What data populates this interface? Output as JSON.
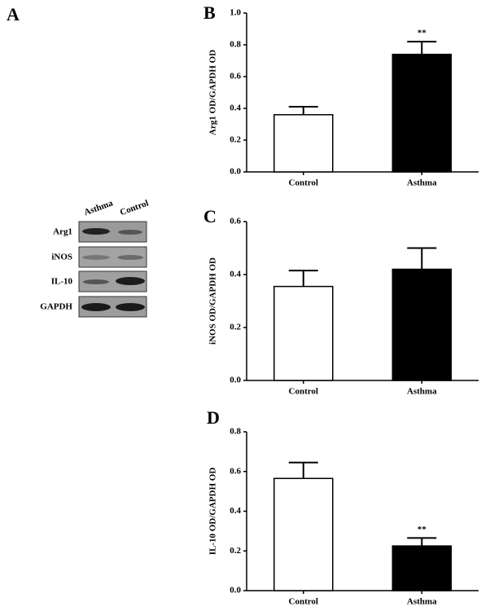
{
  "panel_labels": [
    "A",
    "B",
    "C",
    "D"
  ],
  "blot": {
    "lanes": [
      "Asthma",
      "Control"
    ],
    "rows": [
      "Arg1",
      "iNOS",
      "IL-10",
      "GAPDH"
    ]
  },
  "chart_data": [
    {
      "type": "bar",
      "ylabel": "Arg1 OD/GAPDH OD",
      "categories": [
        "Control",
        "Asthma"
      ],
      "values": [
        0.36,
        0.74
      ],
      "errors": [
        0.05,
        0.08
      ],
      "colors": [
        "#ffffff",
        "#000000"
      ],
      "ylim": [
        0,
        1
      ],
      "yticks": [
        {
          "value": 0,
          "label": "0.0"
        },
        0.2,
        0.4,
        0.6,
        0.8,
        {
          "value": 1,
          "label": "1.0"
        }
      ],
      "annotations": [
        {
          "x": "Asthma",
          "text": "**"
        }
      ]
    },
    {
      "type": "bar",
      "ylabel": "iNOS OD/GAPDH OD",
      "categories": [
        "Control",
        "Asthma"
      ],
      "values": [
        0.355,
        0.42
      ],
      "errors": [
        0.06,
        0.08
      ],
      "colors": [
        "#ffffff",
        "#000000"
      ],
      "ylim": [
        0,
        0.6
      ],
      "yticks": [
        {
          "value": 0,
          "label": "0.0"
        },
        0.2,
        0.4,
        0.6
      ],
      "annotations": []
    },
    {
      "type": "bar",
      "ylabel": "IL-10 OD/GAPDH OD",
      "categories": [
        "Control",
        "Asthma"
      ],
      "values": [
        0.565,
        0.225
      ],
      "errors": [
        0.08,
        0.04
      ],
      "colors": [
        "#ffffff",
        "#000000"
      ],
      "ylim": [
        0,
        0.8
      ],
      "yticks": [
        {
          "value": 0,
          "label": "0.0"
        },
        0.2,
        0.4,
        0.6,
        0.8
      ],
      "annotations": [
        {
          "x": "Asthma",
          "text": "**"
        }
      ]
    }
  ]
}
